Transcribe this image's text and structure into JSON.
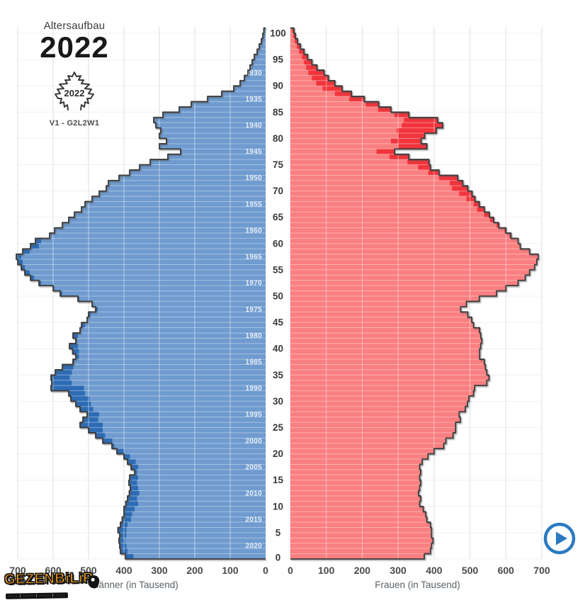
{
  "header": {
    "subtitle": "Altersaufbau",
    "year": "2022",
    "badge_year": "2022",
    "variant": "V1 - G2L2W1"
  },
  "watermark": {
    "title": "GEZENBiLiR",
    "tagline": "····· | ······ | ······ | ·····"
  },
  "chart_data": {
    "type": "bar",
    "subtype": "population-pyramid",
    "title": "Altersaufbau 2022",
    "unit": "Tausend",
    "x_axis": {
      "ticks": [
        0,
        100,
        200,
        300,
        400,
        500,
        600,
        700
      ],
      "max": 700,
      "male_label": "Männer (in Tausend)",
      "female_label": "Frauen (in Tausend)"
    },
    "age_axis": {
      "ticks": [
        0,
        5,
        10,
        15,
        20,
        25,
        30,
        35,
        40,
        45,
        50,
        55,
        60,
        65,
        70,
        75,
        80,
        85,
        90,
        95,
        100
      ]
    },
    "birth_year_labels": [
      {
        "age": 92,
        "year": "1930"
      },
      {
        "age": 87,
        "year": "1935"
      },
      {
        "age": 82,
        "year": "1940"
      },
      {
        "age": 77,
        "year": "1945"
      },
      {
        "age": 72,
        "year": "1950"
      },
      {
        "age": 67,
        "year": "1955"
      },
      {
        "age": 62,
        "year": "1960"
      },
      {
        "age": 57,
        "year": "1965"
      },
      {
        "age": 52,
        "year": "1970"
      },
      {
        "age": 47,
        "year": "1975"
      },
      {
        "age": 42,
        "year": "1980"
      },
      {
        "age": 37,
        "year": "1985"
      },
      {
        "age": 32,
        "year": "1990"
      },
      {
        "age": 27,
        "year": "1995"
      },
      {
        "age": 22,
        "year": "2000"
      },
      {
        "age": 17,
        "year": "2005"
      },
      {
        "age": 12,
        "year": "2010"
      },
      {
        "age": 7,
        "year": "2015"
      },
      {
        "age": 2,
        "year": "2020"
      }
    ],
    "ages_order": "index = age in years, 0 to 100",
    "series": [
      {
        "name": "Männer",
        "side": "left",
        "color": "#6f9bcf",
        "surplus_color": "#2d6cb5",
        "values": [
          396,
          410,
          412,
          414,
          412,
          417,
          410,
          405,
          400,
          400,
          395,
          390,
          385,
          382,
          386,
          384,
          370,
          380,
          390,
          400,
          420,
          434,
          460,
          480,
          500,
          524,
          516,
          504,
          524,
          536,
          550,
          556,
          606,
          604,
          606,
          594,
          574,
          544,
          536,
          545,
          554,
          536,
          544,
          524,
          520,
          504,
          500,
          480,
          490,
          530,
          580,
          600,
          640,
          664,
          680,
          690,
          700,
          704,
          686,
          664,
          650,
          610,
          596,
          574,
          556,
          540,
          520,
          510,
          490,
          470,
          450,
          444,
          414,
          384,
          356,
          326,
          276,
          240,
          300,
          280,
          300,
          296,
          310,
          316,
          290,
          244,
          210,
          164,
          124,
          90,
          72,
          60,
          50,
          44,
          38,
          32,
          24,
          18,
          12,
          8,
          5
        ]
      },
      {
        "name": "Frauen",
        "side": "right",
        "color": "#fa7f80",
        "surplus_color": "#f2343c",
        "values": [
          373,
          390,
          393,
          397,
          393,
          393,
          390,
          380,
          377,
          370,
          360,
          363,
          357,
          360,
          363,
          360,
          363,
          360,
          367,
          383,
          400,
          427,
          433,
          453,
          460,
          460,
          473,
          470,
          487,
          493,
          497,
          510,
          513,
          547,
          553,
          547,
          543,
          540,
          527,
          527,
          530,
          533,
          530,
          527,
          510,
          505,
          494,
          474,
          490,
          526,
          574,
          600,
          634,
          654,
          666,
          680,
          686,
          690,
          666,
          640,
          634,
          614,
          600,
          580,
          566,
          554,
          540,
          526,
          514,
          506,
          494,
          480,
          466,
          414,
          390,
          386,
          330,
          290,
          380,
          364,
          374,
          406,
          424,
          410,
          330,
          280,
          246,
          206,
          170,
          144,
          124,
          106,
          94,
          74,
          60,
          48,
          38,
          28,
          20,
          14,
          10
        ]
      }
    ],
    "encoding_note": "darker bar tip = surplus of that sex over the other at same age",
    "outline_color": "#3a3a3a",
    "legend": "none"
  }
}
